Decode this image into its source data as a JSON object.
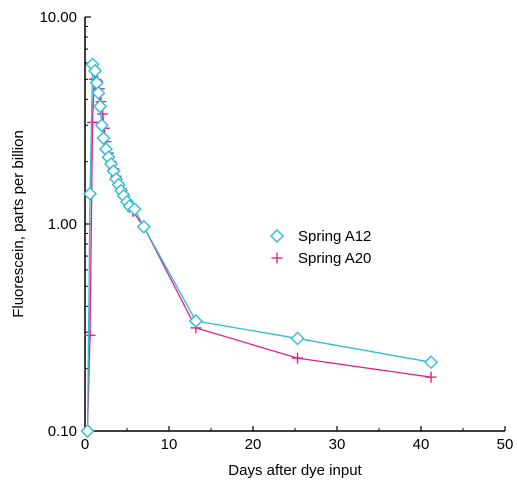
{
  "chart_data": {
    "type": "scatter",
    "xlabel": "Days after dye input",
    "ylabel": "Fluorescein, parts per billion",
    "xlim": [
      0,
      50
    ],
    "ylim": [
      0.1,
      10
    ],
    "yscale": "log",
    "xticks": [
      "0",
      "10",
      "20",
      "30",
      "40",
      "50"
    ],
    "yticks": [
      "0.10",
      "1.00",
      "10.00"
    ],
    "grid": false,
    "legend_position": "center-right",
    "series": [
      {
        "name": "Spring A12",
        "color": "#2bbcd8",
        "marker": "diamond-open",
        "points": [
          {
            "x": 0.3,
            "y": 0.1
          },
          {
            "x": 0.6,
            "y": 1.4
          },
          {
            "x": 0.9,
            "y": 5.9
          },
          {
            "x": 1.2,
            "y": 5.5
          },
          {
            "x": 1.4,
            "y": 4.8
          },
          {
            "x": 1.6,
            "y": 4.3
          },
          {
            "x": 1.8,
            "y": 3.7
          },
          {
            "x": 2.0,
            "y": 3.0
          },
          {
            "x": 2.2,
            "y": 2.6
          },
          {
            "x": 2.5,
            "y": 2.3
          },
          {
            "x": 2.8,
            "y": 2.1
          },
          {
            "x": 3.1,
            "y": 1.95
          },
          {
            "x": 3.4,
            "y": 1.8
          },
          {
            "x": 3.7,
            "y": 1.65
          },
          {
            "x": 4.0,
            "y": 1.55
          },
          {
            "x": 4.3,
            "y": 1.45
          },
          {
            "x": 4.6,
            "y": 1.37
          },
          {
            "x": 5.0,
            "y": 1.28
          },
          {
            "x": 5.3,
            "y": 1.22
          },
          {
            "x": 5.9,
            "y": 1.18
          },
          {
            "x": 7.0,
            "y": 0.97
          },
          {
            "x": 13.2,
            "y": 0.34
          },
          {
            "x": 25.3,
            "y": 0.28
          },
          {
            "x": 41.2,
            "y": 0.215
          }
        ]
      },
      {
        "name": "Spring A20",
        "color": "#e0238c",
        "marker": "plus",
        "points": [
          {
            "x": 0.3,
            "y": 0.1
          },
          {
            "x": 0.6,
            "y": 0.29
          },
          {
            "x": 0.9,
            "y": 3.1
          },
          {
            "x": 1.1,
            "y": 5.0
          },
          {
            "x": 1.3,
            "y": 5.0
          },
          {
            "x": 1.5,
            "y": 4.9
          },
          {
            "x": 1.7,
            "y": 4.5
          },
          {
            "x": 1.9,
            "y": 3.9
          },
          {
            "x": 2.1,
            "y": 3.4
          },
          {
            "x": 2.3,
            "y": 2.9
          },
          {
            "x": 2.5,
            "y": 2.5
          },
          {
            "x": 2.8,
            "y": 2.2
          },
          {
            "x": 3.1,
            "y": 2.0
          },
          {
            "x": 3.4,
            "y": 1.85
          },
          {
            "x": 3.7,
            "y": 1.7
          },
          {
            "x": 4.0,
            "y": 1.58
          },
          {
            "x": 4.3,
            "y": 1.48
          },
          {
            "x": 4.6,
            "y": 1.4
          },
          {
            "x": 5.0,
            "y": 1.3
          },
          {
            "x": 5.3,
            "y": 1.22
          },
          {
            "x": 5.7,
            "y": 1.15
          },
          {
            "x": 7.0,
            "y": 0.97
          },
          {
            "x": 13.2,
            "y": 0.315
          },
          {
            "x": 25.3,
            "y": 0.225
          },
          {
            "x": 41.2,
            "y": 0.182
          }
        ]
      }
    ]
  }
}
